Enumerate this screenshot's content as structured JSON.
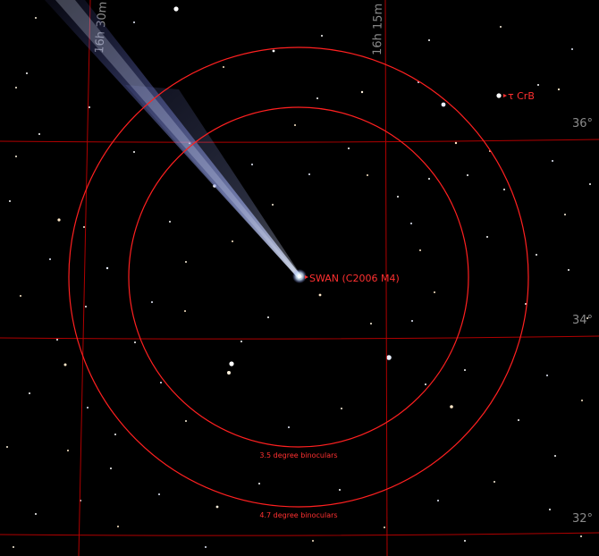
{
  "sky_chart": {
    "grid": {
      "ra_labels": [
        "16h 30m",
        "16h 15m"
      ],
      "dec_labels": [
        "36°",
        "34°",
        "32°"
      ],
      "line_color": "#c00000",
      "label_color": "#8a8a8a"
    },
    "fov": {
      "color": "#ff2020",
      "inner_label": "3.5 degree binoculars",
      "outer_label": "4.7 degree binoculars"
    },
    "objects": {
      "comet_label": "SWAN (C2006 M4)",
      "star_label": "τ CrB",
      "label_color": "#ff3030"
    }
  }
}
